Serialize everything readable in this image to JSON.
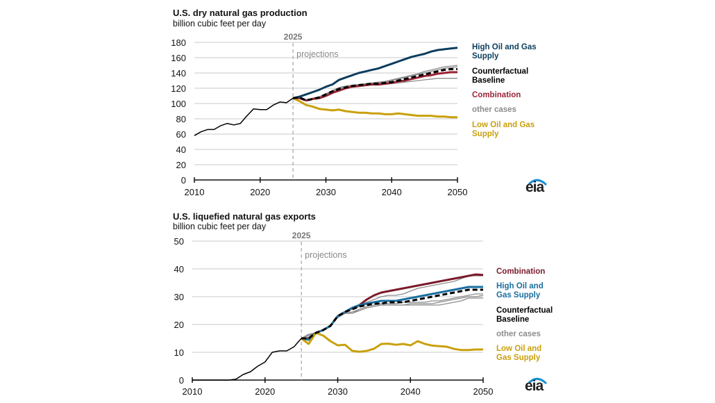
{
  "chart_data": [
    {
      "type": "line",
      "title": "U.S. dry natural gas production",
      "ylabel": "billion cubic feet per day",
      "xlim": [
        2010,
        2050
      ],
      "ylim": [
        0,
        180
      ],
      "xticks": [
        2010,
        2020,
        2030,
        2040,
        2050
      ],
      "yticks": [
        0,
        20,
        40,
        60,
        80,
        100,
        120,
        140,
        160,
        180
      ],
      "marker_year": 2025,
      "marker_label": "2025",
      "annotation": "projections",
      "grid": true,
      "series": [
        {
          "name": "other cases",
          "color": "#8c8c8c",
          "start": 2025,
          "values": [
            107,
            108,
            105,
            107,
            109,
            113,
            117,
            121,
            123,
            124,
            125,
            126,
            127,
            128,
            129,
            131,
            133,
            135,
            137,
            139,
            142,
            144,
            146,
            148,
            149,
            150
          ]
        },
        {
          "name": "other cases",
          "color": "#8c8c8c",
          "start": 2025,
          "values": [
            107,
            108,
            104,
            106,
            108,
            111,
            115,
            118,
            120,
            122,
            123,
            124,
            124,
            124,
            125,
            126,
            127,
            128,
            129,
            130,
            131,
            132,
            133,
            133,
            133,
            133
          ]
        },
        {
          "name": "other cases",
          "color": "#8c8c8c",
          "start": 2025,
          "values": [
            107,
            108,
            105,
            106,
            109,
            112,
            116,
            120,
            122,
            123,
            124,
            125,
            127,
            127,
            128,
            130,
            132,
            134,
            136,
            138,
            140,
            142,
            144,
            146,
            147,
            148
          ]
        },
        {
          "name": "Combination",
          "color": "#9b2335",
          "start": 2025,
          "values": [
            107,
            107,
            104,
            106,
            107,
            110,
            114,
            117,
            120,
            122,
            123,
            124,
            125,
            125,
            126,
            127,
            129,
            130,
            132,
            134,
            136,
            137,
            139,
            140,
            141,
            141
          ]
        },
        {
          "name": "High Oil and Gas Supply",
          "color": "#0b3d5e",
          "start": 2025,
          "values": [
            107,
            109,
            112,
            115,
            118,
            122,
            125,
            131,
            134,
            137,
            140,
            142,
            144,
            146,
            149,
            152,
            155,
            158,
            161,
            163,
            165,
            168,
            170,
            171,
            172,
            173
          ]
        },
        {
          "name": "Low Oil and Gas Supply",
          "color": "#c9a00c",
          "start": 2025,
          "values": [
            107,
            103,
            98,
            96,
            93,
            92,
            91,
            92,
            90,
            89,
            88,
            88,
            87,
            87,
            86,
            86,
            87,
            86,
            85,
            84,
            84,
            84,
            83,
            83,
            82,
            82
          ]
        },
        {
          "name": "Counterfactual Baseline",
          "color": "#000000",
          "dash": true,
          "start": 2025,
          "values": [
            107,
            108,
            104,
            106,
            108,
            112,
            116,
            119,
            121,
            123,
            124,
            125,
            126,
            126,
            127,
            128,
            130,
            132,
            134,
            136,
            138,
            140,
            142,
            144,
            145,
            145
          ]
        },
        {
          "name": "history",
          "color": "#000000",
          "thin": true,
          "start": 2010,
          "values": [
            58,
            63,
            66,
            66,
            71,
            74,
            72,
            74,
            84,
            93,
            92,
            92,
            98,
            102,
            101,
            107
          ]
        }
      ],
      "legend": [
        {
          "label": "High Oil and Gas Supply",
          "color": "#0b3d5e"
        },
        {
          "label": "Counterfactual Baseline",
          "color": "#000000"
        },
        {
          "label": "Combination",
          "color": "#9b2335"
        },
        {
          "label": "other cases",
          "color": "#8c8c8c"
        },
        {
          "label": "Low Oil and Gas Supply",
          "color": "#c9a00c"
        }
      ],
      "legend_placement": "right"
    },
    {
      "type": "line",
      "title": "U.S. liquefied natural gas exports",
      "ylabel": "billion cubic feet per day",
      "xlim": [
        2010,
        2050
      ],
      "ylim": [
        0,
        50
      ],
      "xticks": [
        2010,
        2020,
        2030,
        2040,
        2050
      ],
      "yticks": [
        0,
        10,
        20,
        30,
        40,
        50
      ],
      "marker_year": 2025,
      "marker_label": "2025",
      "annotation": "projections",
      "grid": true,
      "series": [
        {
          "name": "other cases",
          "color": "#8c8c8c",
          "start": 2025,
          "values": [
            15,
            16,
            17,
            18,
            19.5,
            23,
            24.5,
            25.5,
            26.5,
            28,
            29,
            30,
            30.5,
            30.5,
            31,
            32,
            33,
            33.5,
            34,
            34.5,
            35,
            35.5,
            36.5,
            37.5,
            37.5,
            37.5
          ]
        },
        {
          "name": "other cases",
          "color": "#8c8c8c",
          "start": 2025,
          "values": [
            15,
            16.5,
            17,
            18,
            19.5,
            23,
            24,
            24.5,
            25.5,
            26.5,
            27,
            27.5,
            27.5,
            27.5,
            28,
            28,
            28,
            28,
            28.5,
            28.5,
            29,
            29.5,
            30,
            30.5,
            31,
            31
          ]
        },
        {
          "name": "other cases",
          "color": "#8c8c8c",
          "start": 2025,
          "values": [
            15,
            16,
            17,
            18,
            19.5,
            22.5,
            24,
            24.5,
            25,
            26,
            26.5,
            27,
            27,
            27,
            27,
            27.5,
            27.5,
            27.5,
            27.5,
            28,
            28.5,
            29,
            29.5,
            30,
            30,
            30.5
          ]
        },
        {
          "name": "other cases",
          "color": "#8c8c8c",
          "start": 2025,
          "values": [
            15,
            16,
            17,
            18,
            19.5,
            22.5,
            24,
            24,
            25,
            26,
            26.5,
            27,
            27,
            27,
            27,
            27,
            27,
            27,
            27,
            27,
            27.5,
            28,
            28.5,
            29.5,
            29.5,
            29.5
          ]
        },
        {
          "name": "Combination",
          "color": "#7a1a2a",
          "start": 2025,
          "values": [
            15,
            15,
            17,
            18,
            19.5,
            23,
            24.5,
            26,
            27,
            29,
            30.5,
            31.5,
            32,
            32.5,
            33,
            33.5,
            34,
            34.5,
            35,
            35.5,
            36,
            36.5,
            37,
            37.5,
            38,
            37.8
          ]
        },
        {
          "name": "High Oil and Gas Supply",
          "color": "#1a6fa0",
          "start": 2025,
          "values": [
            15,
            14.5,
            17,
            18,
            19.5,
            23,
            24.5,
            26,
            27,
            27.5,
            28,
            28.5,
            28.5,
            28.5,
            29,
            29.5,
            30,
            30.5,
            31,
            31.5,
            32,
            32.5,
            33,
            33.5,
            33.5,
            33.5
          ]
        },
        {
          "name": "Low Oil and Gas Supply",
          "color": "#c9a00c",
          "start": 2025,
          "values": [
            15,
            13,
            17,
            16,
            14,
            12.5,
            12.7,
            10.5,
            10.2,
            10.5,
            11.3,
            13,
            13.1,
            12.7,
            13,
            12.5,
            14,
            13,
            12.4,
            12.2,
            12,
            11.2,
            10.8,
            10.8,
            11,
            11
          ]
        },
        {
          "name": "Counterfactual Baseline",
          "color": "#000000",
          "dash": true,
          "start": 2025,
          "values": [
            15,
            15,
            17,
            18,
            19.5,
            23,
            24.5,
            25.5,
            26.5,
            27,
            27.5,
            27.5,
            28,
            28,
            28,
            28.5,
            29,
            29.5,
            30,
            30.5,
            31,
            31.5,
            32,
            32.5,
            32.5,
            32.5
          ]
        },
        {
          "name": "history",
          "color": "#000000",
          "thin": true,
          "start": 2010,
          "values": [
            0,
            0,
            0,
            0,
            0,
            0,
            0.3,
            2,
            3,
            5,
            6.5,
            10,
            10.5,
            10.5,
            12,
            15
          ]
        }
      ],
      "legend": [
        {
          "label": "Combination",
          "color": "#7a1a2a"
        },
        {
          "label": "High Oil and Gas Supply",
          "color": "#1a6fa0"
        },
        {
          "label": "Counterfactual Baseline",
          "color": "#000000"
        },
        {
          "label": "other cases",
          "color": "#8c8c8c"
        },
        {
          "label": "Low Oil and Gas Supply",
          "color": "#c9a00c"
        }
      ],
      "legend_placement": "right"
    }
  ],
  "logo_text": "eia"
}
